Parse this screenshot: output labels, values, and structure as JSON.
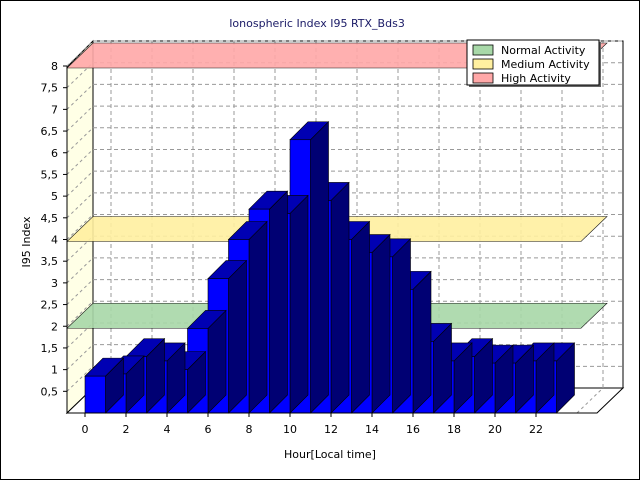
{
  "chart_data": {
    "type": "bar",
    "title": "Ionospheric Index I95 RTX_Bds3",
    "xlabel": "Hour[Local time]",
    "ylabel": "I95 Index",
    "xlim": [
      0,
      24
    ],
    "ylim": [
      0,
      8
    ],
    "x_ticks": [
      "0",
      "2",
      "4",
      "6",
      "8",
      "10",
      "12",
      "14",
      "16",
      "18",
      "20",
      "22"
    ],
    "y_ticks": [
      "0,5",
      "1",
      "1,5",
      "2",
      "2,5",
      "3",
      "3,5",
      "4",
      "4,5",
      "5",
      "5,5",
      "6",
      "6,5",
      "7",
      "7,5",
      "8"
    ],
    "grid": true,
    "legend_position": "top-right",
    "hours": [
      0,
      1,
      2,
      3,
      4,
      5,
      6,
      7,
      8,
      9,
      10,
      11,
      12,
      13,
      14,
      15,
      16,
      17,
      18,
      19,
      20,
      21,
      22
    ],
    "values": [
      0.85,
      0.9,
      1.3,
      1.2,
      1.0,
      1.95,
      3.1,
      4.0,
      4.7,
      4.6,
      6.3,
      4.9,
      4.0,
      3.7,
      3.6,
      2.85,
      1.65,
      1.2,
      1.3,
      1.15,
      1.15,
      1.2,
      1.2
    ],
    "bar_color": "#0000ff",
    "thresholds": [
      {
        "name": "Normal Activity",
        "value": 2.0,
        "color": "#a8d8a8"
      },
      {
        "name": "Medium Activity",
        "value": 4.0,
        "color": "#fff0a0"
      },
      {
        "name": "High Activity",
        "value": 8.0,
        "color": "#ffa8a8"
      }
    ]
  }
}
